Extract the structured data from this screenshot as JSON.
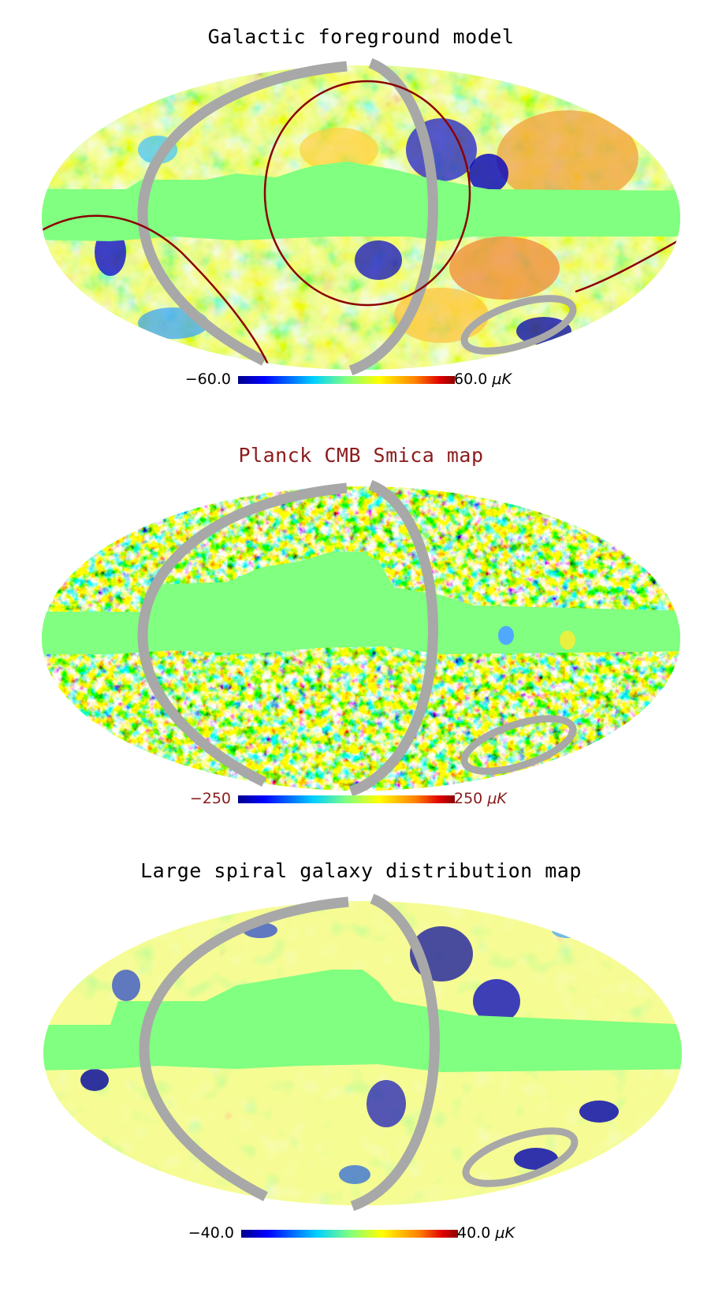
{
  "colors": {
    "masked": "#80ff80",
    "ring": "#a8a8a8",
    "circle": "#8b0000",
    "title2": "#8b1a1a",
    "colorbar": [
      "#00008b",
      "#0000ff",
      "#00c8ff",
      "#80ff80",
      "#ffff00",
      "#ff8000",
      "#e00000",
      "#8b0000"
    ]
  },
  "panels": [
    {
      "title": "Galactic foreground model",
      "colorbar": {
        "min": "−60.0",
        "max": "60.0",
        "unit": "μK"
      }
    },
    {
      "title": "Planck CMB Smica map",
      "colorbar": {
        "min": "−250",
        "max": "250",
        "unit": "μK"
      }
    },
    {
      "title": "Large spiral galaxy distribution map",
      "colorbar": {
        "min": "−40.0",
        "max": "40.0",
        "unit": "μK"
      }
    }
  ]
}
